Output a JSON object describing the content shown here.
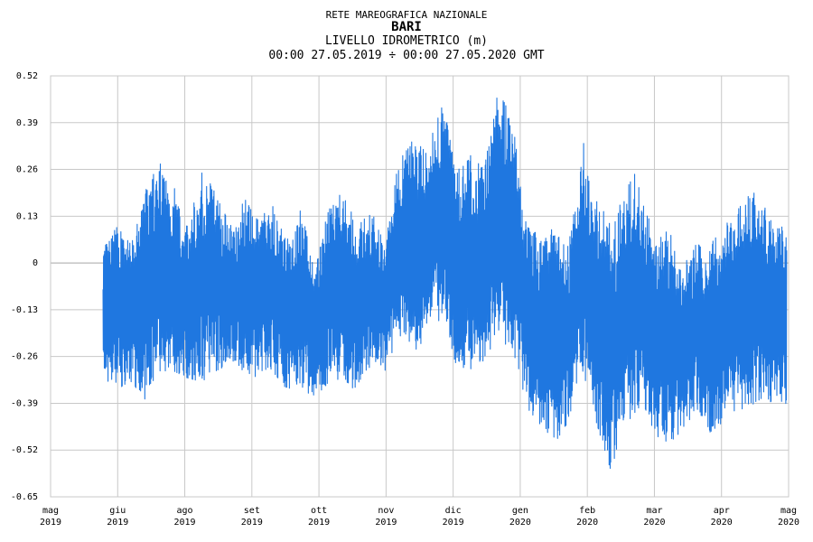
{
  "header": {
    "network": "RETE MAREOGRAFICA NAZIONALE",
    "station": "BARI",
    "measure": "LIVELLO IDROMETRICO (m)",
    "period": "00:00 27.05.2019 ÷ 00:00 27.05.2020 GMT"
  },
  "chart_data": {
    "type": "line",
    "title": "BARI",
    "xlabel": "",
    "ylabel": "LIVELLO IDROMETRICO (m)",
    "ylim": [
      -0.65,
      0.52
    ],
    "yticks": [
      "0.52",
      "0.39",
      "0.26",
      "0.13",
      "0",
      "-0.13",
      "-0.26",
      "-0.39",
      "-0.52",
      "-0.65"
    ],
    "xlim": [
      "2019-05-01",
      "2020-05-01"
    ],
    "xticks": [
      {
        "month": "mag",
        "year": "2019"
      },
      {
        "month": "giu",
        "year": "2019"
      },
      {
        "month": "ago",
        "year": "2019"
      },
      {
        "month": "set",
        "year": "2019"
      },
      {
        "month": "ott",
        "year": "2019"
      },
      {
        "month": "nov",
        "year": "2019"
      },
      {
        "month": "dic",
        "year": "2019"
      },
      {
        "month": "gen",
        "year": "2020"
      },
      {
        "month": "feb",
        "year": "2020"
      },
      {
        "month": "mar",
        "year": "2020"
      },
      {
        "month": "apr",
        "year": "2020"
      },
      {
        "month": "mag",
        "year": "2020"
      }
    ],
    "grid": true,
    "series_color": "#1f77e0",
    "envelope": {
      "dates": [
        "2019-05-27",
        "2019-06-03",
        "2019-06-10",
        "2019-06-17",
        "2019-06-24",
        "2019-07-01",
        "2019-07-08",
        "2019-07-15",
        "2019-07-22",
        "2019-07-29",
        "2019-08-05",
        "2019-08-12",
        "2019-08-19",
        "2019-08-26",
        "2019-09-02",
        "2019-09-09",
        "2019-09-16",
        "2019-09-23",
        "2019-09-30",
        "2019-10-07",
        "2019-10-14",
        "2019-10-21",
        "2019-10-28",
        "2019-11-04",
        "2019-11-11",
        "2019-11-18",
        "2019-11-25",
        "2019-12-02",
        "2019-12-09",
        "2019-12-16",
        "2019-12-23",
        "2019-12-30",
        "2020-01-06",
        "2020-01-13",
        "2020-01-20",
        "2020-01-27",
        "2020-02-03",
        "2020-02-10",
        "2020-02-17",
        "2020-02-24",
        "2020-03-02",
        "2020-03-09",
        "2020-03-16",
        "2020-03-23",
        "2020-03-30",
        "2020-04-06",
        "2020-04-13",
        "2020-04-20",
        "2020-04-27"
      ],
      "max": [
        0.05,
        0.1,
        0.05,
        0.2,
        0.28,
        0.22,
        0.1,
        0.25,
        0.2,
        0.1,
        0.18,
        0.12,
        0.16,
        0.06,
        0.15,
        0.0,
        0.15,
        0.2,
        0.1,
        0.15,
        0.05,
        0.3,
        0.35,
        0.3,
        0.47,
        0.25,
        0.3,
        0.26,
        0.48,
        0.4,
        0.1,
        0.08,
        0.1,
        0.05,
        0.34,
        0.18,
        0.1,
        0.2,
        0.27,
        0.05,
        0.1,
        0.0,
        0.05,
        0.05,
        0.1,
        0.15,
        0.2,
        0.15,
        0.1
      ],
      "min": [
        -0.33,
        -0.35,
        -0.33,
        -0.38,
        -0.3,
        -0.3,
        -0.32,
        -0.33,
        -0.3,
        -0.28,
        -0.3,
        -0.32,
        -0.3,
        -0.35,
        -0.34,
        -0.38,
        -0.33,
        -0.32,
        -0.36,
        -0.28,
        -0.3,
        -0.2,
        -0.25,
        -0.2,
        -0.15,
        -0.28,
        -0.3,
        -0.27,
        -0.2,
        -0.25,
        -0.4,
        -0.45,
        -0.5,
        -0.44,
        -0.3,
        -0.45,
        -0.58,
        -0.45,
        -0.4,
        -0.48,
        -0.5,
        -0.48,
        -0.4,
        -0.47,
        -0.44,
        -0.4,
        -0.42,
        -0.38,
        -0.4
      ]
    }
  }
}
